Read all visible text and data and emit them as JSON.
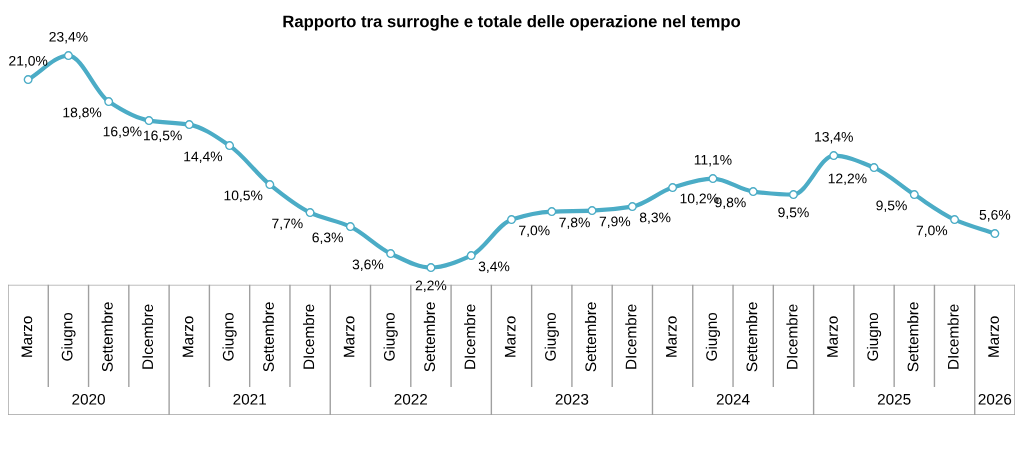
{
  "chart_data": {
    "type": "line",
    "title": "Rapporto tra surroghe e totale delle operazione nel tempo",
    "categories": [
      "Marzo",
      "Giugno",
      "Settembre",
      "DIcembre",
      "Marzo",
      "Giugno",
      "Settembre",
      "DIcembre",
      "Marzo",
      "Giugno",
      "Settembre",
      "DIcembre",
      "Marzo",
      "Giugno",
      "Settembre",
      "DIcembre",
      "Marzo",
      "Giugno",
      "Settembre",
      "DIcembre",
      "Marzo",
      "Giugno",
      "Settembre",
      "DIcembre",
      "Marzo"
    ],
    "values": [
      21.0,
      23.4,
      18.8,
      16.9,
      16.5,
      14.4,
      10.5,
      7.7,
      6.3,
      3.6,
      2.2,
      3.4,
      7.0,
      7.8,
      7.9,
      8.3,
      10.2,
      11.1,
      9.8,
      9.5,
      13.4,
      12.2,
      9.5,
      7.0,
      5.6
    ],
    "value_labels": [
      "21,0%",
      "23,4%",
      "18,8%",
      "16,9%",
      "16,5%",
      "14,4%",
      "10,5%",
      "7,7%",
      "6,3%",
      "3,6%",
      "2,2%",
      "3,4%",
      "7,0%",
      "7,8%",
      "7,9%",
      "8,3%",
      "10,2%",
      "11,1%",
      "9,8%",
      "9,5%",
      "13,4%",
      "12,2%",
      "9,5%",
      "7,0%",
      "5,6%"
    ],
    "color": "#4bacc6",
    "marker": "circle",
    "annotations": [
      "2020",
      "2021",
      "2022",
      "2023",
      "2024",
      "2025",
      "2026"
    ]
  }
}
